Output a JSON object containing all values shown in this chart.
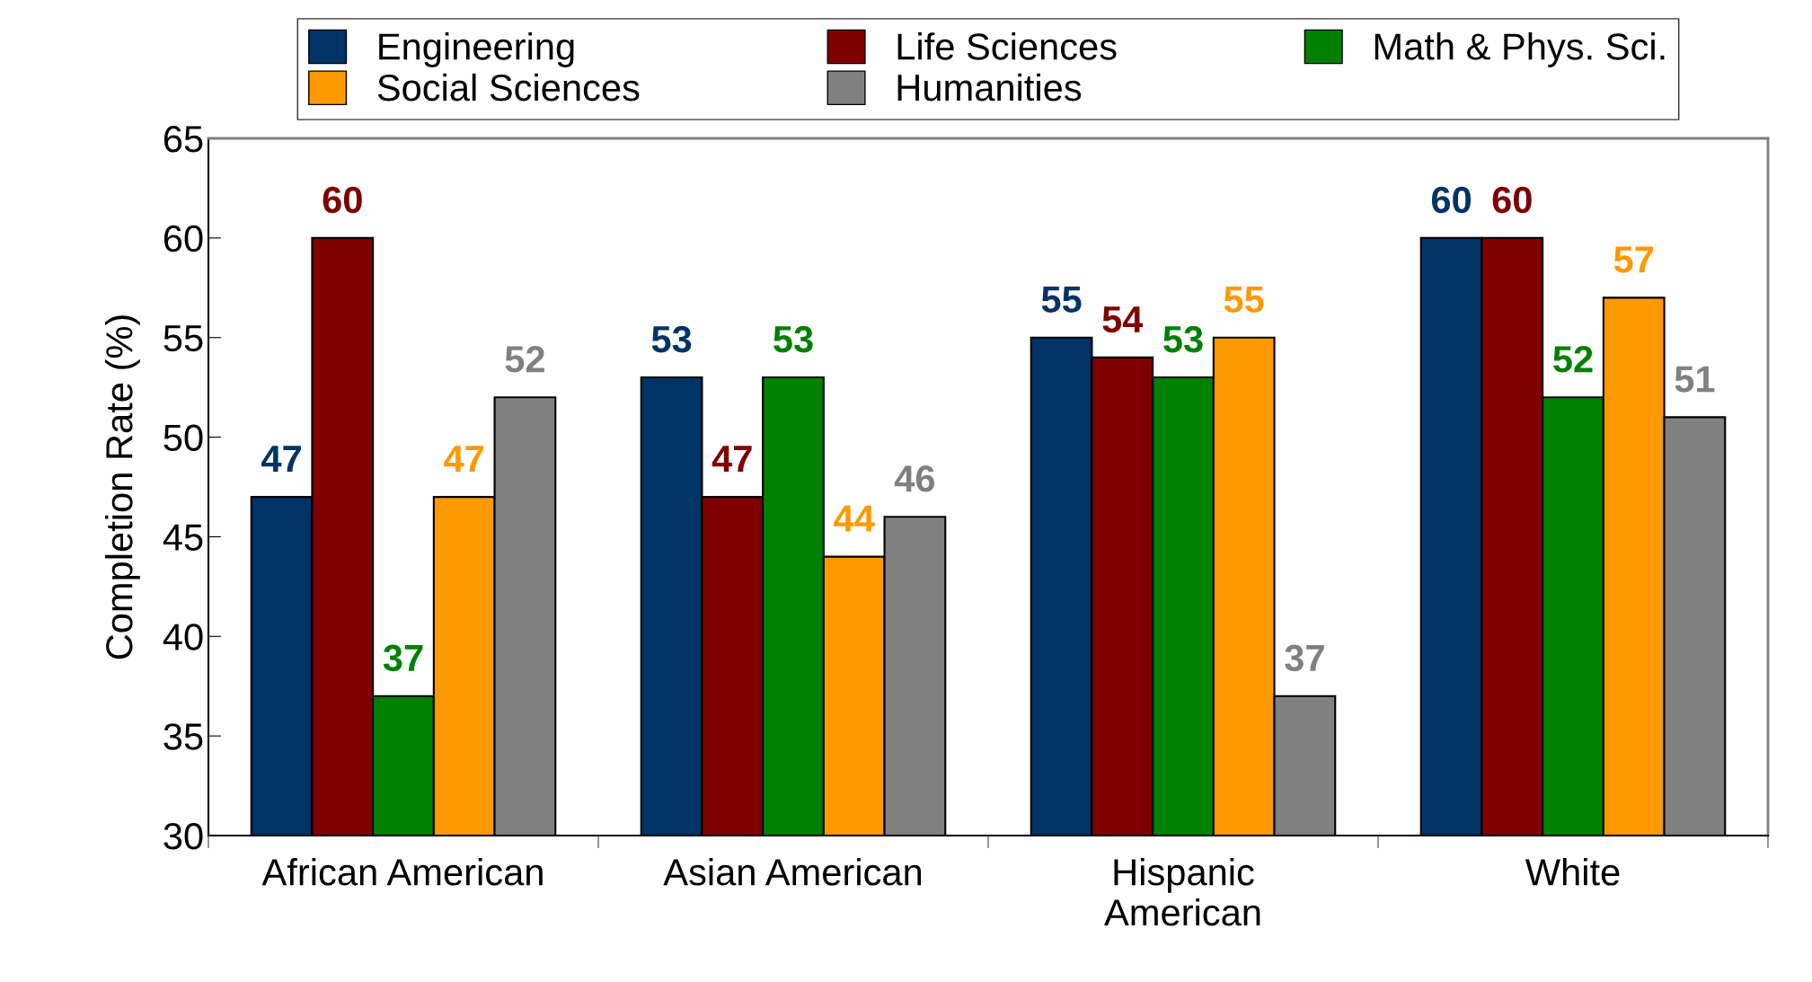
{
  "chart_data": {
    "type": "bar",
    "ylabel": "Completion Rate (%)",
    "categories": [
      "African American",
      "Asian American",
      "Hispanic\nAmerican",
      "White"
    ],
    "series": [
      {
        "name": "Engineering",
        "color": "#003366",
        "values": [
          47,
          53,
          55,
          60
        ]
      },
      {
        "name": "Life Sciences",
        "color": "#800000",
        "values": [
          60,
          47,
          54,
          60
        ]
      },
      {
        "name": "Math & Phys. Sci.",
        "color": "#008000",
        "values": [
          37,
          53,
          53,
          52
        ]
      },
      {
        "name": "Social Sciences",
        "color": "#ff9900",
        "values": [
          47,
          44,
          55,
          57
        ]
      },
      {
        "name": "Humanities",
        "color": "#808080",
        "values": [
          52,
          46,
          37,
          51
        ]
      }
    ],
    "ylim": [
      30,
      65
    ],
    "yticks": [
      30,
      35,
      40,
      45,
      50,
      55,
      60,
      65
    ],
    "data_labels": true,
    "grid": false,
    "legend": "top"
  }
}
